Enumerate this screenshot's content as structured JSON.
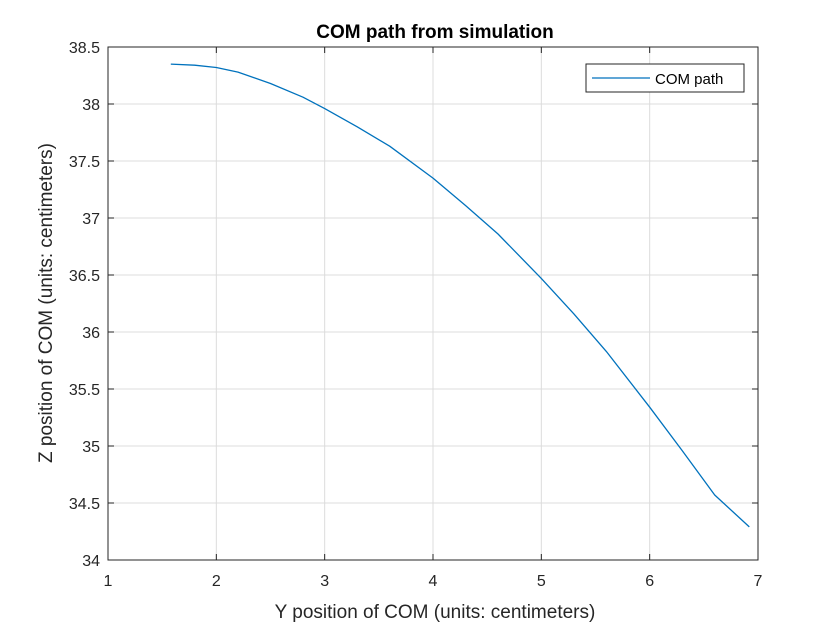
{
  "chart_data": {
    "type": "line",
    "title": "COM path from simulation",
    "xlabel": "Y position of COM (units: centimeters)",
    "ylabel": "Z position of COM (units: centimeters)",
    "xlim": [
      1,
      7
    ],
    "ylim": [
      34,
      38.5
    ],
    "xticks": [
      "1",
      "2",
      "3",
      "4",
      "5",
      "6",
      "7"
    ],
    "yticks": [
      "34",
      "34.5",
      "35",
      "35.5",
      "36",
      "36.5",
      "37",
      "37.5",
      "38",
      "38.5"
    ],
    "grid": true,
    "legend_position": "top-right",
    "colors": {
      "series": "#0072BD",
      "axes": "#262626",
      "grid": "#dcdcdc"
    },
    "series": [
      {
        "name": "COM path",
        "x": [
          1.58,
          1.8,
          2.0,
          2.2,
          2.5,
          2.8,
          3.0,
          3.3,
          3.6,
          4.0,
          4.3,
          4.6,
          5.0,
          5.3,
          5.6,
          6.0,
          6.3,
          6.6,
          6.92
        ],
        "y": [
          38.35,
          38.34,
          38.32,
          38.28,
          38.18,
          38.06,
          37.96,
          37.8,
          37.63,
          37.35,
          37.11,
          36.86,
          36.47,
          36.16,
          35.83,
          35.34,
          34.96,
          34.57,
          34.29
        ]
      }
    ]
  }
}
